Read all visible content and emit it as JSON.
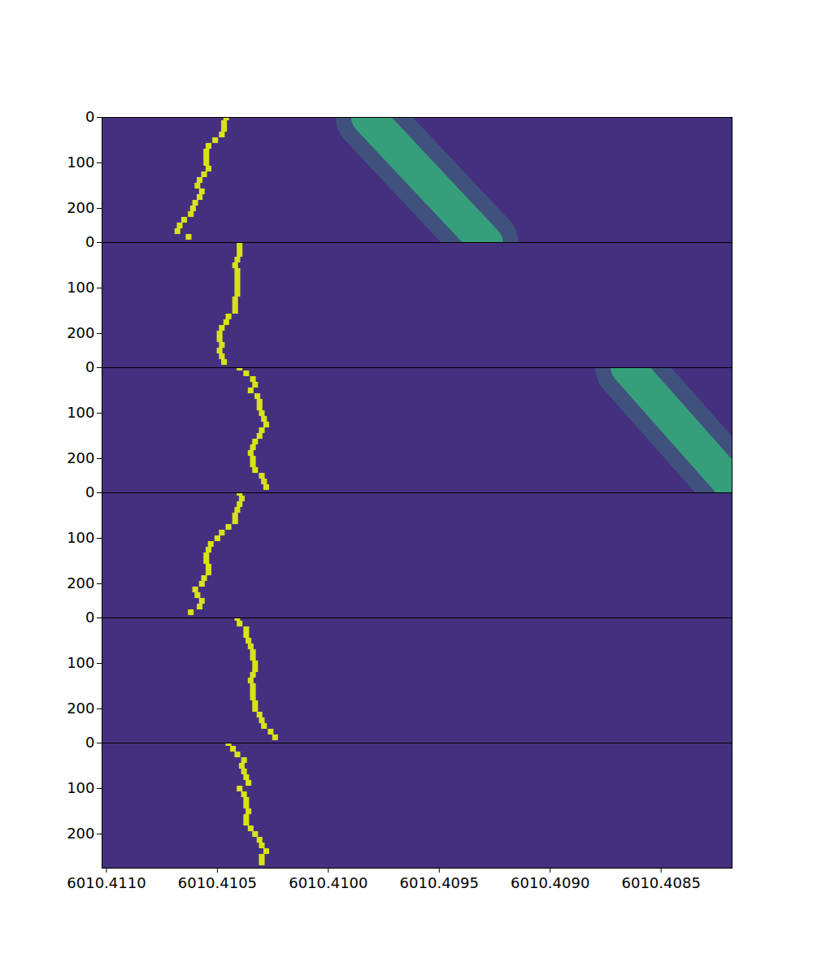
{
  "chart_data": [
    {
      "type": "scatter",
      "xlim": [
        6010.41102,
        6010.40818
      ],
      "ylim": [
        0,
        275
      ],
      "xticks": [
        {
          "value": 6010.411,
          "label": "6010.4110"
        },
        6010.4105,
        {
          "value": 6010.41,
          "label": "6010.4100"
        },
        6010.4095,
        {
          "value": 6010.409,
          "label": "6010.4090"
        },
        6010.4085
      ],
      "yticks": [
        0,
        100,
        200
      ],
      "tick_labels": "y",
      "series": [
        {
          "type": "line",
          "color": "#32b37a",
          "line_style": "solid",
          "x": [
            6010.40982,
            6010.40929
          ],
          "y": [
            0,
            275
          ]
        },
        {
          "type": "scatter",
          "color": "#d8e219",
          "marker": "square",
          "x": [
            6010.41046,
            6010.41047,
            6010.41047,
            6010.41048,
            6010.41051,
            6010.41054,
            6010.41055,
            6010.41055,
            6010.41055,
            6010.41054,
            6010.41056,
            6010.41058,
            6010.41059,
            6010.41057,
            6010.41058,
            6010.4106,
            6010.41061,
            6010.41062,
            6010.41065,
            6010.41067,
            6010.41068,
            6010.41063
          ],
          "y": [
            0,
            12.5,
            25,
            37.5,
            50,
            62.5,
            75,
            87.5,
            100,
            112.5,
            125,
            137.5,
            150,
            162.5,
            175,
            187.5,
            200,
            212.5,
            225,
            237.5,
            250,
            262.5
          ]
        }
      ]
    },
    {
      "type": "scatter",
      "xlim": [
        6010.41102,
        6010.40818
      ],
      "ylim": [
        0,
        275
      ],
      "xticks": [
        {
          "value": 6010.411,
          "label": "6010.4110"
        },
        6010.4105,
        {
          "value": 6010.41,
          "label": "6010.4100"
        },
        6010.4095,
        {
          "value": 6010.409,
          "label": "6010.4090"
        },
        6010.4085
      ],
      "yticks": [
        0,
        100,
        200
      ],
      "tick_labels": "y",
      "series": [
        {
          "type": "scatter",
          "color": "#d8e219",
          "marker": "square",
          "x": [
            6010.4104,
            6010.4104,
            6010.4104,
            6010.41041,
            6010.41042,
            6010.41041,
            6010.41041,
            6010.41041,
            6010.41041,
            6010.41041,
            6010.41042,
            6010.41042,
            6010.41042,
            6010.41045,
            6010.41046,
            6010.41048,
            6010.41049,
            6010.41049,
            6010.41048,
            6010.41049,
            6010.41048,
            6010.41047
          ],
          "y": [
            0,
            12.5,
            25,
            37.5,
            50,
            62.5,
            75,
            87.5,
            100,
            112.5,
            125,
            137.5,
            150,
            162.5,
            175,
            187.5,
            200,
            212.5,
            225,
            237.5,
            250,
            262.5
          ]
        }
      ]
    },
    {
      "type": "scatter",
      "xlim": [
        6010.41102,
        6010.40818
      ],
      "ylim": [
        0,
        275
      ],
      "xticks": [
        {
          "value": 6010.411,
          "label": "6010.4110"
        },
        6010.4105,
        {
          "value": 6010.41,
          "label": "6010.4100"
        },
        6010.4095,
        {
          "value": 6010.409,
          "label": "6010.4090"
        },
        6010.4085
      ],
      "yticks": [
        0,
        100,
        200
      ],
      "tick_labels": "y",
      "series": [
        {
          "type": "line",
          "color": "#32b37a",
          "line_style": "solid",
          "x": [
            6010.40865,
            6010.40815
          ],
          "y": [
            0,
            275
          ]
        },
        {
          "type": "scatter",
          "color": "#d8e219",
          "marker": "square",
          "x": [
            6010.4104,
            6010.41037,
            6010.41034,
            6010.41033,
            6010.41035,
            6010.41032,
            6010.41031,
            6010.41031,
            6010.4103,
            6010.41029,
            6010.41028,
            6010.4103,
            6010.41031,
            6010.41033,
            6010.41034,
            6010.41035,
            6010.41034,
            6010.41034,
            6010.41033,
            6010.4103,
            6010.41029,
            6010.41028
          ],
          "y": [
            0,
            12.5,
            25,
            37.5,
            50,
            62.5,
            75,
            87.5,
            100,
            112.5,
            125,
            137.5,
            150,
            162.5,
            175,
            187.5,
            200,
            212.5,
            225,
            237.5,
            250,
            262.5
          ]
        }
      ]
    },
    {
      "type": "scatter",
      "xlim": [
        6010.41102,
        6010.40818
      ],
      "ylim": [
        0,
        275
      ],
      "xticks": [
        {
          "value": 6010.411,
          "label": "6010.4110"
        },
        6010.4105,
        {
          "value": 6010.41,
          "label": "6010.4100"
        },
        6010.4095,
        {
          "value": 6010.409,
          "label": "6010.4090"
        },
        6010.4085
      ],
      "yticks": [
        0,
        100,
        200
      ],
      "tick_labels": "y",
      "series": [
        {
          "type": "scatter",
          "color": "#d8e219",
          "marker": "square",
          "x": [
            6010.4104,
            6010.41039,
            6010.4104,
            6010.41041,
            6010.41042,
            6010.41042,
            6010.41045,
            6010.41048,
            6010.4105,
            6010.41053,
            6010.41054,
            6010.41055,
            6010.41055,
            6010.41054,
            6010.41054,
            6010.41056,
            6010.41057,
            6010.4106,
            6010.41059,
            6010.41057,
            6010.41058,
            6010.41062
          ],
          "y": [
            0,
            12.5,
            25,
            37.5,
            50,
            62.5,
            75,
            87.5,
            100,
            112.5,
            125,
            137.5,
            150,
            162.5,
            175,
            187.5,
            200,
            212.5,
            225,
            237.5,
            250,
            262.5
          ]
        }
      ]
    },
    {
      "type": "scatter",
      "xlim": [
        6010.41102,
        6010.40818
      ],
      "ylim": [
        0,
        275
      ],
      "xticks": [
        {
          "value": 6010.411,
          "label": "6010.4110"
        },
        6010.4105,
        {
          "value": 6010.41,
          "label": "6010.4100"
        },
        6010.4095,
        {
          "value": 6010.409,
          "label": "6010.4090"
        },
        6010.4085
      ],
      "yticks": [
        0,
        100,
        200
      ],
      "tick_labels": "y",
      "series": [
        {
          "type": "scatter",
          "color": "#d8e219",
          "marker": "square",
          "x": [
            6010.41041,
            6010.4104,
            6010.41037,
            6010.41037,
            6010.41036,
            6010.41035,
            6010.41034,
            6010.41034,
            6010.41033,
            6010.41033,
            6010.41034,
            6010.41035,
            6010.41034,
            6010.41034,
            6010.41034,
            6010.41033,
            6010.41033,
            6010.41031,
            6010.4103,
            6010.41029,
            6010.41026,
            6010.41024
          ],
          "y": [
            0,
            12.5,
            25,
            37.5,
            50,
            62.5,
            75,
            87.5,
            100,
            112.5,
            125,
            137.5,
            150,
            162.5,
            175,
            187.5,
            200,
            212.5,
            225,
            237.5,
            250,
            262.5
          ]
        }
      ]
    },
    {
      "type": "scatter",
      "xlim": [
        6010.41102,
        6010.40818
      ],
      "ylim": [
        0,
        275
      ],
      "xticks": [
        {
          "value": 6010.411,
          "label": "6010.4110"
        },
        6010.4105,
        {
          "value": 6010.41,
          "label": "6010.4100"
        },
        6010.4095,
        {
          "value": 6010.409,
          "label": "6010.4090"
        },
        6010.4085
      ],
      "yticks": [
        0,
        100,
        200
      ],
      "series": [
        {
          "type": "scatter",
          "color": "#d8e219",
          "marker": "square",
          "x": [
            6010.41045,
            6010.41043,
            6010.41041,
            6010.41038,
            6010.41039,
            6010.41038,
            6010.41037,
            6010.41036,
            6010.4104,
            6010.41038,
            6010.41037,
            6010.41037,
            6010.41036,
            6010.41037,
            6010.41037,
            6010.41035,
            6010.41033,
            6010.41031,
            6010.4103,
            6010.41028,
            6010.4103,
            6010.4103
          ],
          "y": [
            0,
            12.5,
            25,
            37.5,
            50,
            62.5,
            75,
            87.5,
            100,
            112.5,
            125,
            137.5,
            150,
            162.5,
            175,
            187.5,
            200,
            212.5,
            225,
            237.5,
            250,
            262.5
          ]
        }
      ]
    }
  ]
}
